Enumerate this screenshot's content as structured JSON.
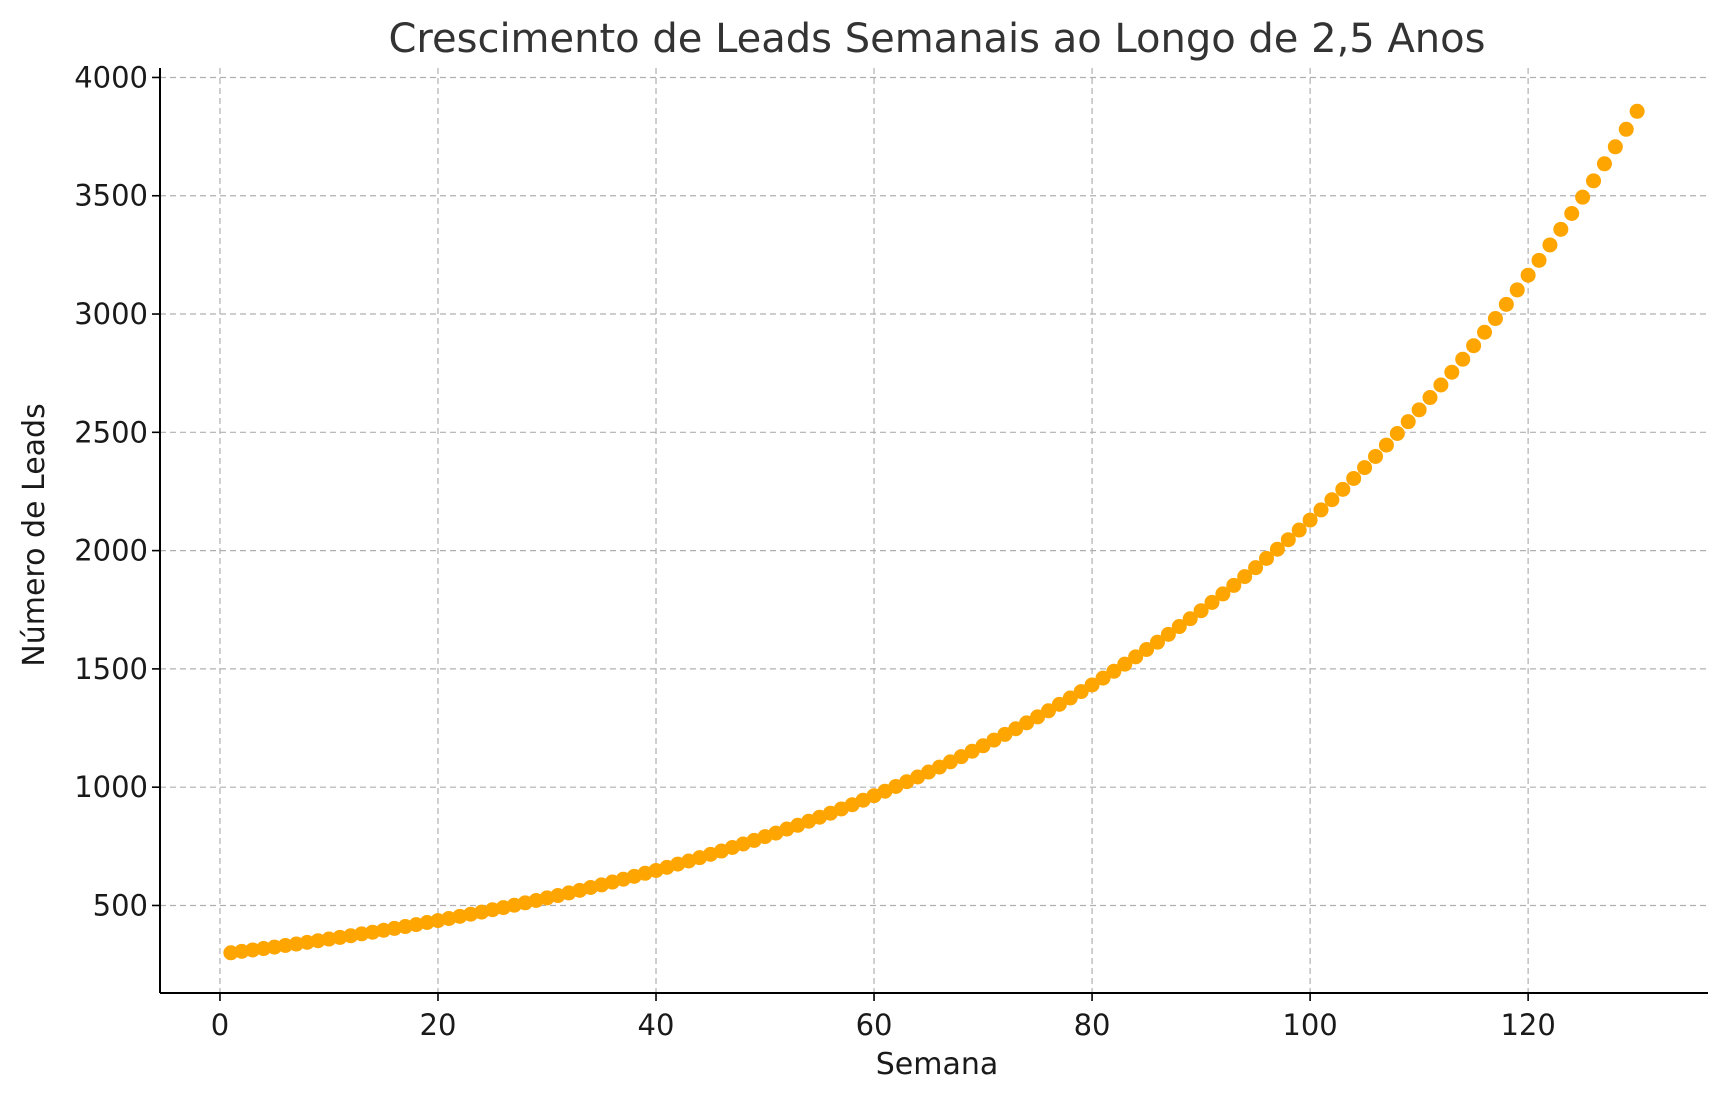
{
  "chart_data": {
    "type": "scatter",
    "title": "Crescimento de Leads Semanais ao Longo de 2,5 Anos",
    "xlabel": "Semana",
    "ylabel": "Número de Leads",
    "xlim": [
      -5.5,
      136.5
    ],
    "ylim": [
      130,
      4040
    ],
    "xticks": [
      0,
      20,
      40,
      60,
      80,
      100,
      120
    ],
    "yticks": [
      500,
      1000,
      1500,
      2000,
      2500,
      3000,
      3500,
      4000
    ],
    "grid": true,
    "marker_color": "#FFA500",
    "series": [
      {
        "x_start": 1,
        "x_end": 130,
        "x_step": 1,
        "values": [
          300,
          306,
          312,
          318,
          324,
          331,
          337,
          344,
          351,
          358,
          365,
          372,
          380,
          387,
          395,
          403,
          411,
          419,
          428,
          436,
          445,
          454,
          463,
          472,
          482,
          491,
          501,
          511,
          521,
          532,
          542,
          553,
          564,
          576,
          587,
          599,
          611,
          623,
          636,
          648,
          661,
          675,
          688,
          702,
          716,
          730,
          745,
          760,
          775,
          791,
          806,
          823,
          839,
          856,
          873,
          890,
          908,
          926,
          945,
          964,
          983,
          1003,
          1023,
          1043,
          1064,
          1085,
          1107,
          1129,
          1152,
          1175,
          1199,
          1223,
          1247,
          1272,
          1297,
          1323,
          1350,
          1377,
          1404,
          1432,
          1461,
          1490,
          1520,
          1551,
          1582,
          1613,
          1646,
          1679,
          1712,
          1746,
          1781,
          1817,
          1853,
          1890,
          1928,
          1967,
          2006,
          2046,
          2087,
          2129,
          2172,
          2215,
          2259,
          2305,
          2351,
          2398,
          2446,
          2495,
          2545,
          2595,
          2647,
          2700,
          2754,
          2809,
          2866,
          2923,
          2981,
          3041,
          3102,
          3164,
          3227,
          3292,
          3358,
          3425,
          3494,
          3563,
          3635,
          3707,
          3781,
          3857
        ]
      }
    ]
  }
}
